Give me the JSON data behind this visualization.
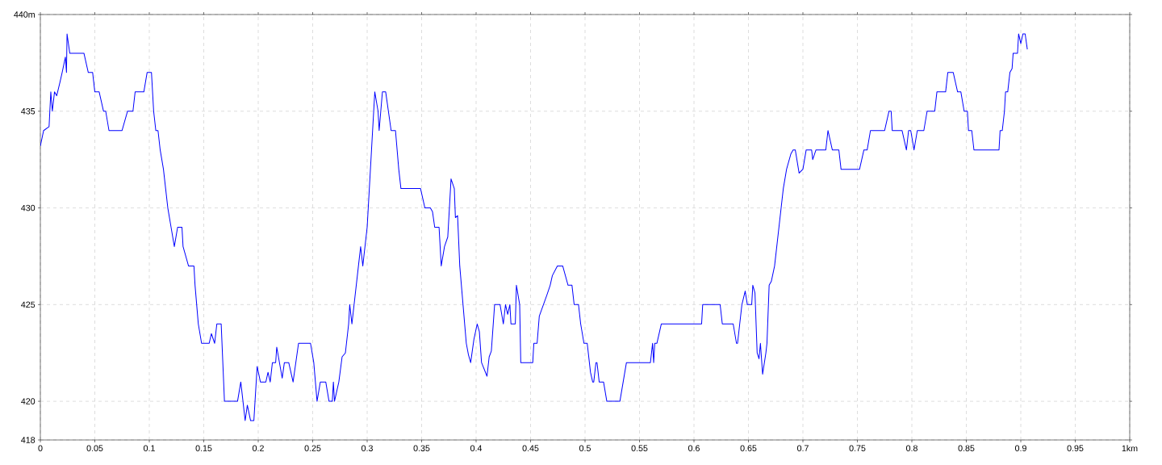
{
  "chart_data": {
    "type": "line",
    "xlim": [
      0,
      1
    ],
    "ylim": [
      418,
      440
    ],
    "xticks": [
      0,
      0.05,
      0.1,
      0.15,
      0.2,
      0.25,
      0.3,
      0.35,
      0.4,
      0.45,
      0.5,
      0.55,
      0.6,
      0.65,
      0.7,
      0.75,
      0.8,
      0.85,
      0.9,
      0.95,
      {
        "value": 1,
        "label": "1km"
      }
    ],
    "yticks": [
      418,
      420,
      425,
      430,
      435,
      {
        "value": 440,
        "label": "440m"
      }
    ],
    "grid": true,
    "marker": "none",
    "line_style": "solid",
    "series": [
      {
        "color": "#0000ff",
        "x": [
          0,
          0.003,
          0.008,
          0.0096,
          0.011,
          0.013,
          0.015,
          0.018,
          0.02,
          0.023,
          0.024,
          0.0245,
          0.027,
          0.04,
          0.044,
          0.048,
          0.05,
          0.054,
          0.058,
          0.06,
          0.063,
          0.075,
          0.08,
          0.085,
          0.087,
          0.095,
          0.098,
          0.102,
          0.104,
          0.106,
          0.108,
          0.11,
          0.113,
          0.115,
          0.117,
          0.12,
          0.123,
          0.126,
          0.13,
          0.131,
          0.136,
          0.141,
          0.142,
          0.145,
          0.148,
          0.155,
          0.157,
          0.16,
          0.162,
          0.166,
          0.169,
          0.181,
          0.184,
          0.188,
          0.19,
          0.193,
          0.196,
          0.199,
          0.202,
          0.207,
          0.209,
          0.211,
          0.213,
          0.216,
          0.217,
          0.222,
          0.224,
          0.228,
          0.232,
          0.237,
          0.248,
          0.251,
          0.254,
          0.257,
          0.262,
          0.265,
          0.268,
          0.269,
          0.27,
          0.274,
          0.277,
          0.28,
          0.283,
          0.284,
          0.286,
          0.289,
          0.292,
          0.294,
          0.296,
          0.3,
          0.304,
          0.307,
          0.31,
          0.311,
          0.314,
          0.317,
          0.322,
          0.326,
          0.329,
          0.331,
          0.349,
          0.353,
          0.358,
          0.36,
          0.362,
          0.366,
          0.368,
          0.371,
          0.374,
          0.377,
          0.38,
          0.381,
          0.383,
          0.385,
          0.391,
          0.393,
          0.395,
          0.398,
          0.401,
          0.403,
          0.405,
          0.41,
          0.412,
          0.414,
          0.417,
          0.422,
          0.425,
          0.427,
          0.429,
          0.431,
          0.432,
          0.436,
          0.437,
          0.44,
          0.441,
          0.452,
          0.453,
          0.456,
          0.458,
          0.465,
          0.468,
          0.47,
          0.4746,
          0.4795,
          0.4844,
          0.488,
          0.49,
          0.494,
          0.496,
          0.499,
          0.502,
          0.505,
          0.507,
          0.508,
          0.51,
          0.511,
          0.513,
          0.517,
          0.52,
          0.532,
          0.538,
          0.56,
          0.562,
          0.563,
          0.564,
          0.566,
          0.57,
          0.607,
          0.608,
          0.624,
          0.626,
          0.636,
          0.639,
          0.64,
          0.644,
          0.647,
          0.649,
          0.653,
          0.654,
          0.656,
          0.658,
          0.6597,
          0.661,
          0.663,
          0.666,
          0.667,
          0.669,
          0.671,
          0.674,
          0.678,
          0.682,
          0.685,
          0.689,
          0.691,
          0.693,
          0.6965,
          0.7,
          0.703,
          0.708,
          0.709,
          0.712,
          0.721,
          0.723,
          0.727,
          0.733,
          0.735,
          0.752,
          0.756,
          0.759,
          0.762,
          0.775,
          0.779,
          0.781,
          0.782,
          0.791,
          0.795,
          0.797,
          0.799,
          0.802,
          0.805,
          0.811,
          0.814,
          0.821,
          0.823,
          0.831,
          0.833,
          0.838,
          0.842,
          0.845,
          0.848,
          0.851,
          0.852,
          0.855,
          0.857,
          0.88,
          0.881,
          0.883,
          0.885,
          0.886,
          0.888,
          0.89,
          0.892,
          0.893,
          0.897,
          0.898,
          0.9,
          0.902,
          0.904,
          0.906
        ],
        "values": [
          433.2,
          434,
          434.2,
          436,
          435,
          436,
          435.8,
          436.5,
          437,
          437.8,
          437,
          439,
          438,
          438,
          437,
          437,
          436,
          436,
          435,
          435,
          434,
          434,
          435,
          435,
          436,
          436,
          437,
          437,
          435,
          434,
          434,
          433,
          432,
          431,
          430,
          429,
          428,
          429,
          429,
          428,
          427,
          427,
          426,
          424,
          423,
          423,
          423.5,
          423,
          424,
          424,
          420,
          420,
          421,
          419,
          419.8,
          419,
          419,
          421.8,
          421,
          421,
          421.5,
          421,
          422,
          422,
          422.8,
          421.2,
          422,
          422,
          421,
          423,
          423,
          422,
          420,
          421,
          421,
          420,
          420,
          421,
          420,
          421,
          422.3,
          422.5,
          424,
          425,
          424,
          425.5,
          427,
          428,
          427,
          429,
          433,
          436,
          435,
          434,
          436,
          436,
          434,
          434,
          432,
          431,
          431,
          430,
          430,
          429.8,
          429,
          429,
          427,
          428,
          428.5,
          431.5,
          431,
          429.5,
          429.6,
          427,
          423,
          422.4,
          422,
          423.2,
          424,
          423.6,
          422,
          421.3,
          422.3,
          422.6,
          425,
          425,
          424,
          425,
          424.5,
          425,
          424,
          424,
          426,
          425,
          422,
          422,
          423,
          423,
          424.4,
          425.5,
          426,
          426.5,
          427,
          427,
          426,
          426,
          425,
          425,
          424,
          423,
          423,
          421.5,
          421,
          421,
          422,
          422,
          421,
          421,
          420,
          420,
          422,
          422,
          423,
          422,
          423,
          423,
          424,
          424,
          425,
          425,
          424,
          424,
          423,
          423,
          425,
          425.7,
          425,
          425,
          426,
          425.6,
          422.5,
          422.2,
          423,
          421.4,
          422.5,
          423,
          426,
          426.2,
          427,
          429,
          431,
          432,
          432.8,
          433,
          433,
          431.8,
          432,
          433,
          433,
          432.5,
          433,
          433,
          434,
          433,
          433,
          432,
          432,
          433,
          433,
          434,
          434,
          435,
          435,
          434,
          434,
          433,
          434,
          434,
          433,
          434,
          434,
          435,
          435,
          436,
          436,
          437,
          437,
          436,
          436,
          435,
          435,
          434,
          434,
          433,
          433,
          434,
          434,
          435,
          436,
          436,
          437,
          437.2,
          438,
          438,
          439,
          438.5,
          439,
          439,
          438.2
        ]
      }
    ]
  }
}
